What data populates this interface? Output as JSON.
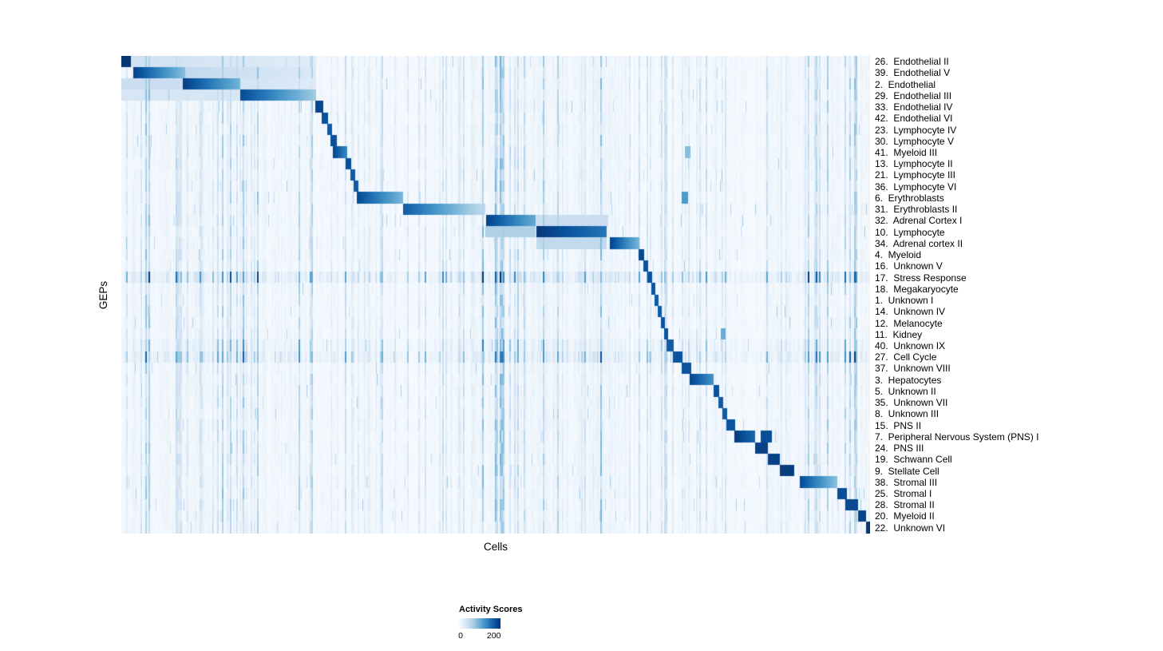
{
  "chart_data": {
    "type": "heatmap",
    "title": "",
    "xlabel": "Cells",
    "ylabel": "GEPs",
    "colorbar": {
      "label": "Activity Scores",
      "min": 0,
      "max": 245,
      "ticks": [
        {
          "label": "0",
          "pos": 0.04
        },
        {
          "label": "200",
          "pos": 0.84
        }
      ]
    },
    "colormap": [
      "#f7fbff",
      "#deebf7",
      "#c6dbef",
      "#9ecae1",
      "#6baed6",
      "#4292c6",
      "#2171b5",
      "#08519c",
      "#08306b"
    ],
    "noise_regions": [
      [
        0.0,
        0.26,
        1.6
      ],
      [
        0.47,
        0.67,
        1.7
      ],
      [
        0.86,
        1.0,
        1.6
      ]
    ],
    "rows": [
      {
        "label": "26.  Endothelial II",
        "blocks": [
          [
            0.0,
            0.012,
            240,
            0
          ],
          [
            0.012,
            0.26,
            50,
            0.45
          ]
        ]
      },
      {
        "label": "39.  Endothelial V",
        "blocks": [
          [
            0.015,
            0.085,
            230,
            0.55
          ],
          [
            0.085,
            0.26,
            65,
            0.5
          ]
        ]
      },
      {
        "label": "2.  Endothelial",
        "blocks": [
          [
            0.082,
            0.158,
            232,
            0.5
          ],
          [
            0.0,
            0.082,
            55,
            0
          ],
          [
            0.158,
            0.26,
            45,
            0.35
          ]
        ]
      },
      {
        "label": "29.  Endothelial III",
        "blocks": [
          [
            0.158,
            0.26,
            220,
            0.6
          ],
          [
            0.0,
            0.158,
            40,
            0
          ]
        ]
      },
      {
        "label": "33.  Endothelial IV",
        "blocks": [
          [
            0.258,
            0.269,
            225,
            0
          ]
        ]
      },
      {
        "label": "42.  Endothelial VI",
        "blocks": [
          [
            0.267,
            0.276,
            215,
            0
          ]
        ]
      },
      {
        "label": "23.  Lymphocyte IV",
        "blocks": [
          [
            0.274,
            0.281,
            205,
            0
          ]
        ]
      },
      {
        "label": "30.  Lymphocyte V",
        "blocks": [
          [
            0.279,
            0.287,
            215,
            0
          ]
        ]
      },
      {
        "label": "41.  Myeloid III",
        "blocks": [
          [
            0.282,
            0.301,
            228,
            0.3
          ],
          [
            0.752,
            0.76,
            105,
            0
          ]
        ]
      },
      {
        "label": "13.  Lymphocyte II",
        "blocks": [
          [
            0.299,
            0.307,
            215,
            0
          ]
        ]
      },
      {
        "label": "21.  Lymphocyte III",
        "blocks": [
          [
            0.305,
            0.312,
            205,
            0
          ]
        ]
      },
      {
        "label": "36.  Lymphocyte VI",
        "blocks": [
          [
            0.31,
            0.316,
            205,
            0
          ]
        ]
      },
      {
        "label": "6.  Erythroblasts",
        "blocks": [
          [
            0.314,
            0.376,
            222,
            0.5
          ],
          [
            0.748,
            0.756,
            145,
            0
          ]
        ]
      },
      {
        "label": "31.  Erythroblasts II",
        "blocks": [
          [
            0.376,
            0.486,
            205,
            0.7
          ]
        ]
      },
      {
        "label": "32.  Adrenal Cortex I",
        "blocks": [
          [
            0.487,
            0.553,
            228,
            0.45
          ],
          [
            0.553,
            0.65,
            55,
            0
          ]
        ]
      },
      {
        "label": "10.  Lymphocyte",
        "blocks": [
          [
            0.554,
            0.648,
            238,
            0.25
          ],
          [
            0.487,
            0.553,
            80,
            0
          ]
        ]
      },
      {
        "label": "34.  Adrenal cortex II",
        "blocks": [
          [
            0.652,
            0.691,
            228,
            0.5
          ],
          [
            0.554,
            0.648,
            65,
            0
          ]
        ]
      },
      {
        "label": "4.  Myeloid",
        "blocks": [
          [
            0.69,
            0.698,
            222,
            0
          ]
        ]
      },
      {
        "label": "16.  Unknown V",
        "blocks": [
          [
            0.697,
            0.703,
            212,
            0
          ]
        ]
      },
      {
        "label": "17.  Stress Response",
        "blocks": [
          [
            0.702,
            0.708,
            212,
            0
          ]
        ],
        "noise": 2.6
      },
      {
        "label": "18.  Megakaryocyte",
        "blocks": [
          [
            0.707,
            0.713,
            212,
            0
          ]
        ]
      },
      {
        "label": "1.  Unknown I",
        "blocks": [
          [
            0.712,
            0.717,
            205,
            0
          ]
        ]
      },
      {
        "label": "14.  Unknown IV",
        "blocks": [
          [
            0.716,
            0.721,
            205,
            0
          ]
        ]
      },
      {
        "label": "12.  Melanocyte",
        "blocks": [
          [
            0.72,
            0.726,
            212,
            0
          ]
        ]
      },
      {
        "label": "11.  Kidney",
        "blocks": [
          [
            0.724,
            0.73,
            212,
            0
          ],
          [
            0.8,
            0.807,
            125,
            0
          ]
        ]
      },
      {
        "label": "40.  Unknown IX",
        "blocks": [
          [
            0.728,
            0.737,
            205,
            0
          ]
        ],
        "noise": 1.6
      },
      {
        "label": "27.  Cell Cycle",
        "blocks": [
          [
            0.736,
            0.749,
            212,
            0
          ]
        ],
        "noise": 2.2
      },
      {
        "label": "37.  Unknown VIII",
        "blocks": [
          [
            0.748,
            0.761,
            212,
            0
          ]
        ]
      },
      {
        "label": "3.  Hepatocytes",
        "blocks": [
          [
            0.759,
            0.791,
            228,
            0.35
          ]
        ]
      },
      {
        "label": "5.  Unknown II",
        "blocks": [
          [
            0.791,
            0.798,
            212,
            0
          ]
        ]
      },
      {
        "label": "35.  Unknown VII",
        "blocks": [
          [
            0.797,
            0.803,
            205,
            0
          ]
        ]
      },
      {
        "label": "8.  Unknown III",
        "blocks": [
          [
            0.802,
            0.809,
            205,
            0
          ]
        ]
      },
      {
        "label": "15.  PNS II",
        "blocks": [
          [
            0.808,
            0.819,
            212,
            0
          ]
        ]
      },
      {
        "label": "7.  Peripheral Nervous System (PNS) I",
        "blocks": [
          [
            0.818,
            0.846,
            238,
            0.2
          ],
          [
            0.853,
            0.868,
            218,
            0
          ]
        ]
      },
      {
        "label": "24.  PNS III",
        "blocks": [
          [
            0.846,
            0.863,
            228,
            0
          ]
        ]
      },
      {
        "label": "19.  Schwann Cell",
        "blocks": [
          [
            0.863,
            0.879,
            228,
            0
          ]
        ]
      },
      {
        "label": "9.  Stellate Cell",
        "blocks": [
          [
            0.879,
            0.898,
            232,
            0
          ]
        ]
      },
      {
        "label": "38.  Stromal III",
        "blocks": [
          [
            0.906,
            0.956,
            220,
            0.55
          ]
        ]
      },
      {
        "label": "25.  Stromal I",
        "blocks": [
          [
            0.956,
            0.969,
            218,
            0
          ]
        ]
      },
      {
        "label": "28.  Stromal II",
        "blocks": [
          [
            0.966,
            0.984,
            222,
            0
          ]
        ]
      },
      {
        "label": "20.  Myeloid II",
        "blocks": [
          [
            0.984,
            0.994,
            228,
            0
          ]
        ]
      },
      {
        "label": "22.  Unknown VI",
        "blocks": [
          [
            0.994,
            1.001,
            240,
            0
          ]
        ]
      }
    ]
  }
}
